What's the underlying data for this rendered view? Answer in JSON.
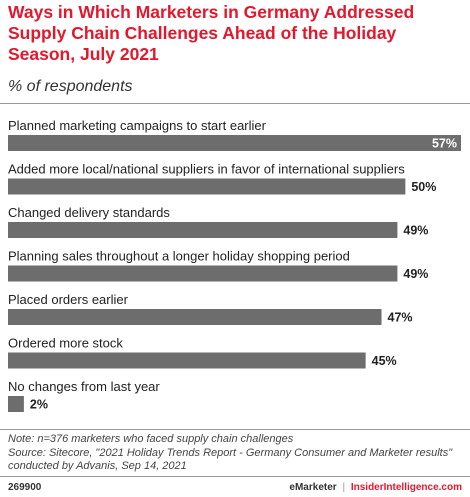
{
  "header": {
    "title": "Ways in Which Marketers in Germany Addressed Supply Chain Challenges Ahead of the Holiday Season, July 2021",
    "subtitle": "% of respondents"
  },
  "chart_data": {
    "type": "bar",
    "orientation": "horizontal",
    "categories": [
      "Planned marketing campaigns to start earlier",
      "Added more local/national suppliers in favor of international suppliers",
      "Changed delivery standards",
      "Planning sales throughout a longer holiday shopping period",
      "Placed orders earlier",
      "Ordered more stock",
      "No changes from last year"
    ],
    "values": [
      57,
      50,
      49,
      49,
      47,
      45,
      2
    ],
    "value_labels": [
      "57%",
      "50%",
      "49%",
      "49%",
      "47%",
      "45%",
      "2%"
    ],
    "xlim": [
      0,
      57
    ],
    "bar_color": "#6d6d6d",
    "grid": false
  },
  "notes": {
    "line1": "Note: n=376 marketers who faced supply chain challenges",
    "line2": "Source: Sitecore, \"2021 Holiday Trends Report - Germany Consumer and Marketer results\"",
    "line3": "conducted by Advanis, Sep 14, 2021"
  },
  "footer": {
    "code": "269900",
    "brand_left": "eMarketer",
    "separator": "|",
    "brand_right": "InsiderIntelligence.com"
  },
  "colors": {
    "accent": "#e3182d",
    "bar": "#6d6d6d",
    "rule": "#9a9a9a"
  }
}
